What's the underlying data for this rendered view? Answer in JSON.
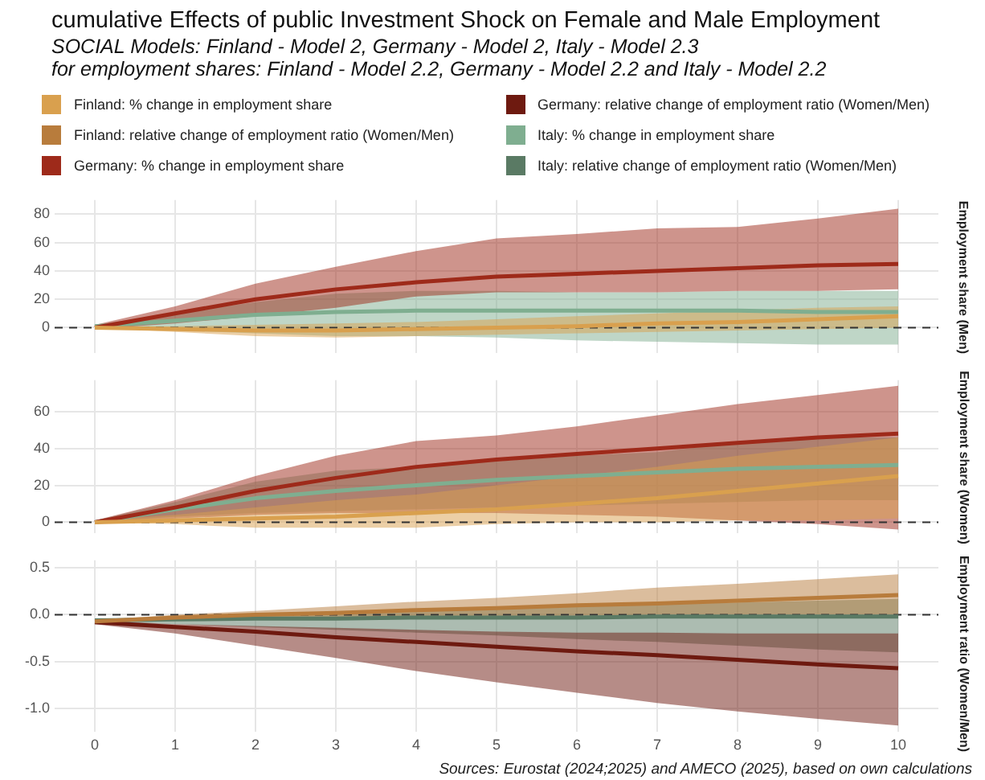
{
  "chart_data": [
    {
      "type": "line",
      "title": "cumulative Effects of public Investment Shock on Female and Male Employment",
      "subtitle": "SOCIAL Models: Finland - Model 2, Germany - Model 2, Italy - Model 2.3\nfor employment shares: Finland - Model 2.2, Germany - Model 2.2 and Italy - Model 2.2",
      "ylabel": "Employment share (Men)",
      "x": [
        0,
        1,
        2,
        3,
        4,
        5,
        6,
        7,
        8,
        9,
        10
      ],
      "xlim": [
        -0.5,
        10.5
      ],
      "xticks": [
        0,
        1,
        2,
        3,
        4,
        5,
        6,
        7,
        8,
        9,
        10
      ],
      "ylim": [
        -18,
        90
      ],
      "yticks": [
        0,
        20,
        40,
        60,
        80
      ],
      "grid": true,
      "legend": "top",
      "tick_labels": "y",
      "marker": "none",
      "line_style": "solid",
      "ref_lines": [
        {
          "axis": "y",
          "value": 0,
          "color": "#333333",
          "line_style": "dashed"
        }
      ],
      "series": [
        {
          "name": "Finland: % change in employment share",
          "color": "#d9a04e",
          "values": [
            0,
            -1,
            -2,
            -2,
            -1,
            0,
            1,
            3,
            4,
            6,
            8
          ],
          "lower": [
            0,
            -3,
            -6,
            -7,
            -6,
            -5,
            -4,
            -3,
            -2,
            -1,
            0
          ],
          "upper": [
            1,
            1,
            2,
            3,
            4,
            6,
            8,
            10,
            12,
            14,
            15
          ]
        },
        {
          "name": "Germany: % change in employment share",
          "color": "#9e2a1a",
          "values": [
            0,
            10,
            20,
            27,
            32,
            36,
            38,
            40,
            42,
            44,
            45
          ],
          "lower": [
            -1,
            3,
            8,
            14,
            22,
            25,
            25,
            25,
            26,
            26,
            27
          ],
          "upper": [
            2,
            15,
            31,
            43,
            54,
            63,
            66,
            70,
            71,
            77,
            84
          ]
        },
        {
          "name": "Italy: % change in employment share",
          "color": "#7fae90",
          "values": [
            1,
            5,
            9,
            11,
            12,
            12,
            12,
            12,
            12,
            11,
            11
          ],
          "lower": [
            0,
            -2,
            -4,
            -6,
            -6,
            -7,
            -9,
            -10,
            -11,
            -12,
            -12
          ],
          "upper": [
            2,
            10,
            18,
            24,
            26,
            26,
            25,
            25,
            26,
            26,
            26
          ]
        }
      ]
    },
    {
      "type": "line",
      "ylabel": "Employment share (Women)",
      "x": [
        0,
        1,
        2,
        3,
        4,
        5,
        6,
        7,
        8,
        9,
        10
      ],
      "xlim": [
        -0.5,
        10.5
      ],
      "xticks": [
        0,
        1,
        2,
        3,
        4,
        5,
        6,
        7,
        8,
        9,
        10
      ],
      "ylim": [
        -6,
        77
      ],
      "yticks": [
        0,
        20,
        40,
        60
      ],
      "grid": true,
      "tick_labels": "y",
      "marker": "none",
      "line_style": "solid",
      "ref_lines": [
        {
          "axis": "y",
          "value": 0,
          "color": "#333333",
          "line_style": "dashed"
        }
      ],
      "series": [
        {
          "color": "#d9a04e",
          "values": [
            0,
            1,
            2,
            3,
            5,
            7,
            10,
            13,
            17,
            21,
            25
          ],
          "lower": [
            0,
            -1,
            -3,
            -3,
            -3,
            -1,
            0,
            0,
            1,
            1,
            2
          ],
          "upper": [
            1,
            4,
            8,
            12,
            15,
            20,
            25,
            30,
            36,
            41,
            46
          ]
        },
        {
          "color": "#9e2a1a",
          "values": [
            0,
            8,
            17,
            24,
            30,
            34,
            37,
            40,
            43,
            46,
            48
          ],
          "lower": [
            -1,
            2,
            4,
            5,
            5,
            5,
            4,
            3,
            1,
            -1,
            -4
          ],
          "upper": [
            1,
            12,
            25,
            36,
            44,
            47,
            52,
            58,
            64,
            69,
            74
          ]
        },
        {
          "color": "#7fae90",
          "values": [
            0,
            7,
            13,
            17,
            20,
            23,
            25,
            27,
            29,
            30,
            31
          ],
          "lower": [
            0,
            3,
            5,
            6,
            7,
            8,
            9,
            10,
            11,
            12,
            12
          ],
          "upper": [
            1,
            11,
            22,
            28,
            30,
            33,
            36,
            38,
            43,
            46,
            46
          ]
        }
      ]
    },
    {
      "type": "line",
      "ylabel": "Employment ratio (Women/Men)",
      "x": [
        0,
        1,
        2,
        3,
        4,
        5,
        6,
        7,
        8,
        9,
        10
      ],
      "xlim": [
        -0.5,
        10.5
      ],
      "xticks": [
        0,
        1,
        2,
        3,
        4,
        5,
        6,
        7,
        8,
        9,
        10
      ],
      "ylim": [
        -1.25,
        0.58
      ],
      "yticks": [
        {
          "value": -1,
          "label": "-1.0"
        },
        {
          "value": -0.5,
          "label": "-0.5"
        },
        {
          "value": 0,
          "label": "0.0"
        },
        {
          "value": 0.5,
          "label": "0.5"
        }
      ],
      "grid": true,
      "legend": "top",
      "marker": "none",
      "line_style": "solid",
      "ref_lines": [
        {
          "axis": "y",
          "value": 0,
          "color": "#333333",
          "line_style": "dashed"
        }
      ],
      "annotations": [
        "Sources: Eurostat (2024;2025) and AMECO (2025), based on own calculations"
      ],
      "series": [
        {
          "name": "Finland: relative change of employment ratio (Women/Men)",
          "color": "#b87c3c",
          "values": [
            -0.07,
            -0.03,
            0,
            0.02,
            0.05,
            0.07,
            0.1,
            0.12,
            0.15,
            0.18,
            0.21
          ],
          "lower": [
            -0.08,
            -0.06,
            -0.05,
            -0.04,
            -0.03,
            -0.02,
            -0.01,
            0,
            0,
            0,
            0
          ],
          "upper": [
            -0.06,
            0,
            0.04,
            0.09,
            0.14,
            0.18,
            0.23,
            0.29,
            0.33,
            0.38,
            0.43
          ]
        },
        {
          "name": "Germany: relative change of employment ratio (Women/Men)",
          "color": "#6e1a10",
          "values": [
            -0.08,
            -0.13,
            -0.18,
            -0.24,
            -0.29,
            -0.34,
            -0.39,
            -0.43,
            -0.48,
            -0.53,
            -0.57
          ],
          "lower": [
            -0.1,
            -0.2,
            -0.33,
            -0.46,
            -0.6,
            -0.72,
            -0.83,
            -0.94,
            -1.03,
            -1.11,
            -1.18
          ],
          "upper": [
            -0.06,
            -0.1,
            -0.12,
            -0.14,
            -0.16,
            -0.18,
            -0.19,
            -0.19,
            -0.2,
            -0.2,
            -0.2
          ]
        },
        {
          "name": "Italy: relative change of employment ratio (Women/Men)",
          "color": "#5a7a64",
          "values": [
            -0.06,
            -0.05,
            -0.04,
            -0.04,
            -0.03,
            -0.03,
            -0.03,
            -0.02,
            -0.02,
            -0.02,
            -0.02
          ],
          "lower": [
            -0.07,
            -0.1,
            -0.13,
            -0.16,
            -0.19,
            -0.22,
            -0.26,
            -0.29,
            -0.33,
            -0.37,
            -0.4
          ],
          "upper": [
            -0.05,
            -0.02,
            0.01,
            0.03,
            0.05,
            0.07,
            0.09,
            0.11,
            0.13,
            0.15,
            0.17
          ]
        }
      ]
    }
  ]
}
